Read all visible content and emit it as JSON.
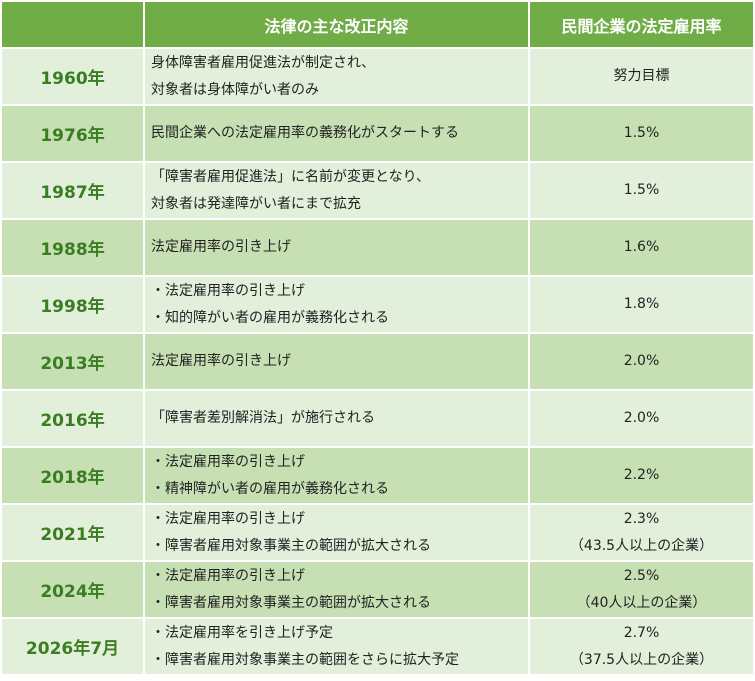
{
  "header": {
    "year": "",
    "content": "法律の主な改正内容",
    "rate": "民間企業の法定雇用率"
  },
  "rows": [
    {
      "year": "1960年",
      "lines": [
        "身体障害者雇用促進法が制定され、",
        "対象者は身体障がい者のみ"
      ],
      "rate": [
        "努力目標"
      ]
    },
    {
      "year": "1976年",
      "lines": [
        "民間企業への法定雇用率の義務化がスタートする"
      ],
      "rate": [
        "1.5%"
      ]
    },
    {
      "year": "1987年",
      "lines": [
        "「障害者雇用促進法」に名前が変更となり、",
        "対象者は発達障がい者にまで拡充"
      ],
      "rate": [
        "1.5%"
      ]
    },
    {
      "year": "1988年",
      "lines": [
        "法定雇用率の引き上げ"
      ],
      "rate": [
        "1.6%"
      ]
    },
    {
      "year": "1998年",
      "lines": [
        "・法定雇用率の引き上げ",
        "・知的障がい者の雇用が義務化される"
      ],
      "rate": [
        "1.8%"
      ]
    },
    {
      "year": "2013年",
      "lines": [
        "法定雇用率の引き上げ"
      ],
      "rate": [
        "2.0%"
      ]
    },
    {
      "year": "2016年",
      "lines": [
        "「障害者差別解消法」が施行される"
      ],
      "rate": [
        "2.0%"
      ]
    },
    {
      "year": "2018年",
      "lines": [
        "・法定雇用率の引き上げ",
        "・精神障がい者の雇用が義務化される"
      ],
      "rate": [
        "2.2%"
      ]
    },
    {
      "year": "2021年",
      "lines": [
        "・法定雇用率の引き上げ",
        "・障害者雇用対象事業主の範囲が拡大される"
      ],
      "rate": [
        "2.3%",
        "（43.5人以上の企業）"
      ]
    },
    {
      "year": "2024年",
      "lines": [
        "・法定雇用率の引き上げ",
        "・障害者雇用対象事業主の範囲が拡大される"
      ],
      "rate": [
        "2.5%",
        "（40人以上の企業）"
      ]
    },
    {
      "year": "2026年7月",
      "lines": [
        "・法定雇用率を引き上げ予定",
        "・障害者雇用対象事業主の範囲をさらに拡大予定"
      ],
      "rate": [
        "2.7%",
        "（37.5人以上の企業）"
      ]
    }
  ]
}
